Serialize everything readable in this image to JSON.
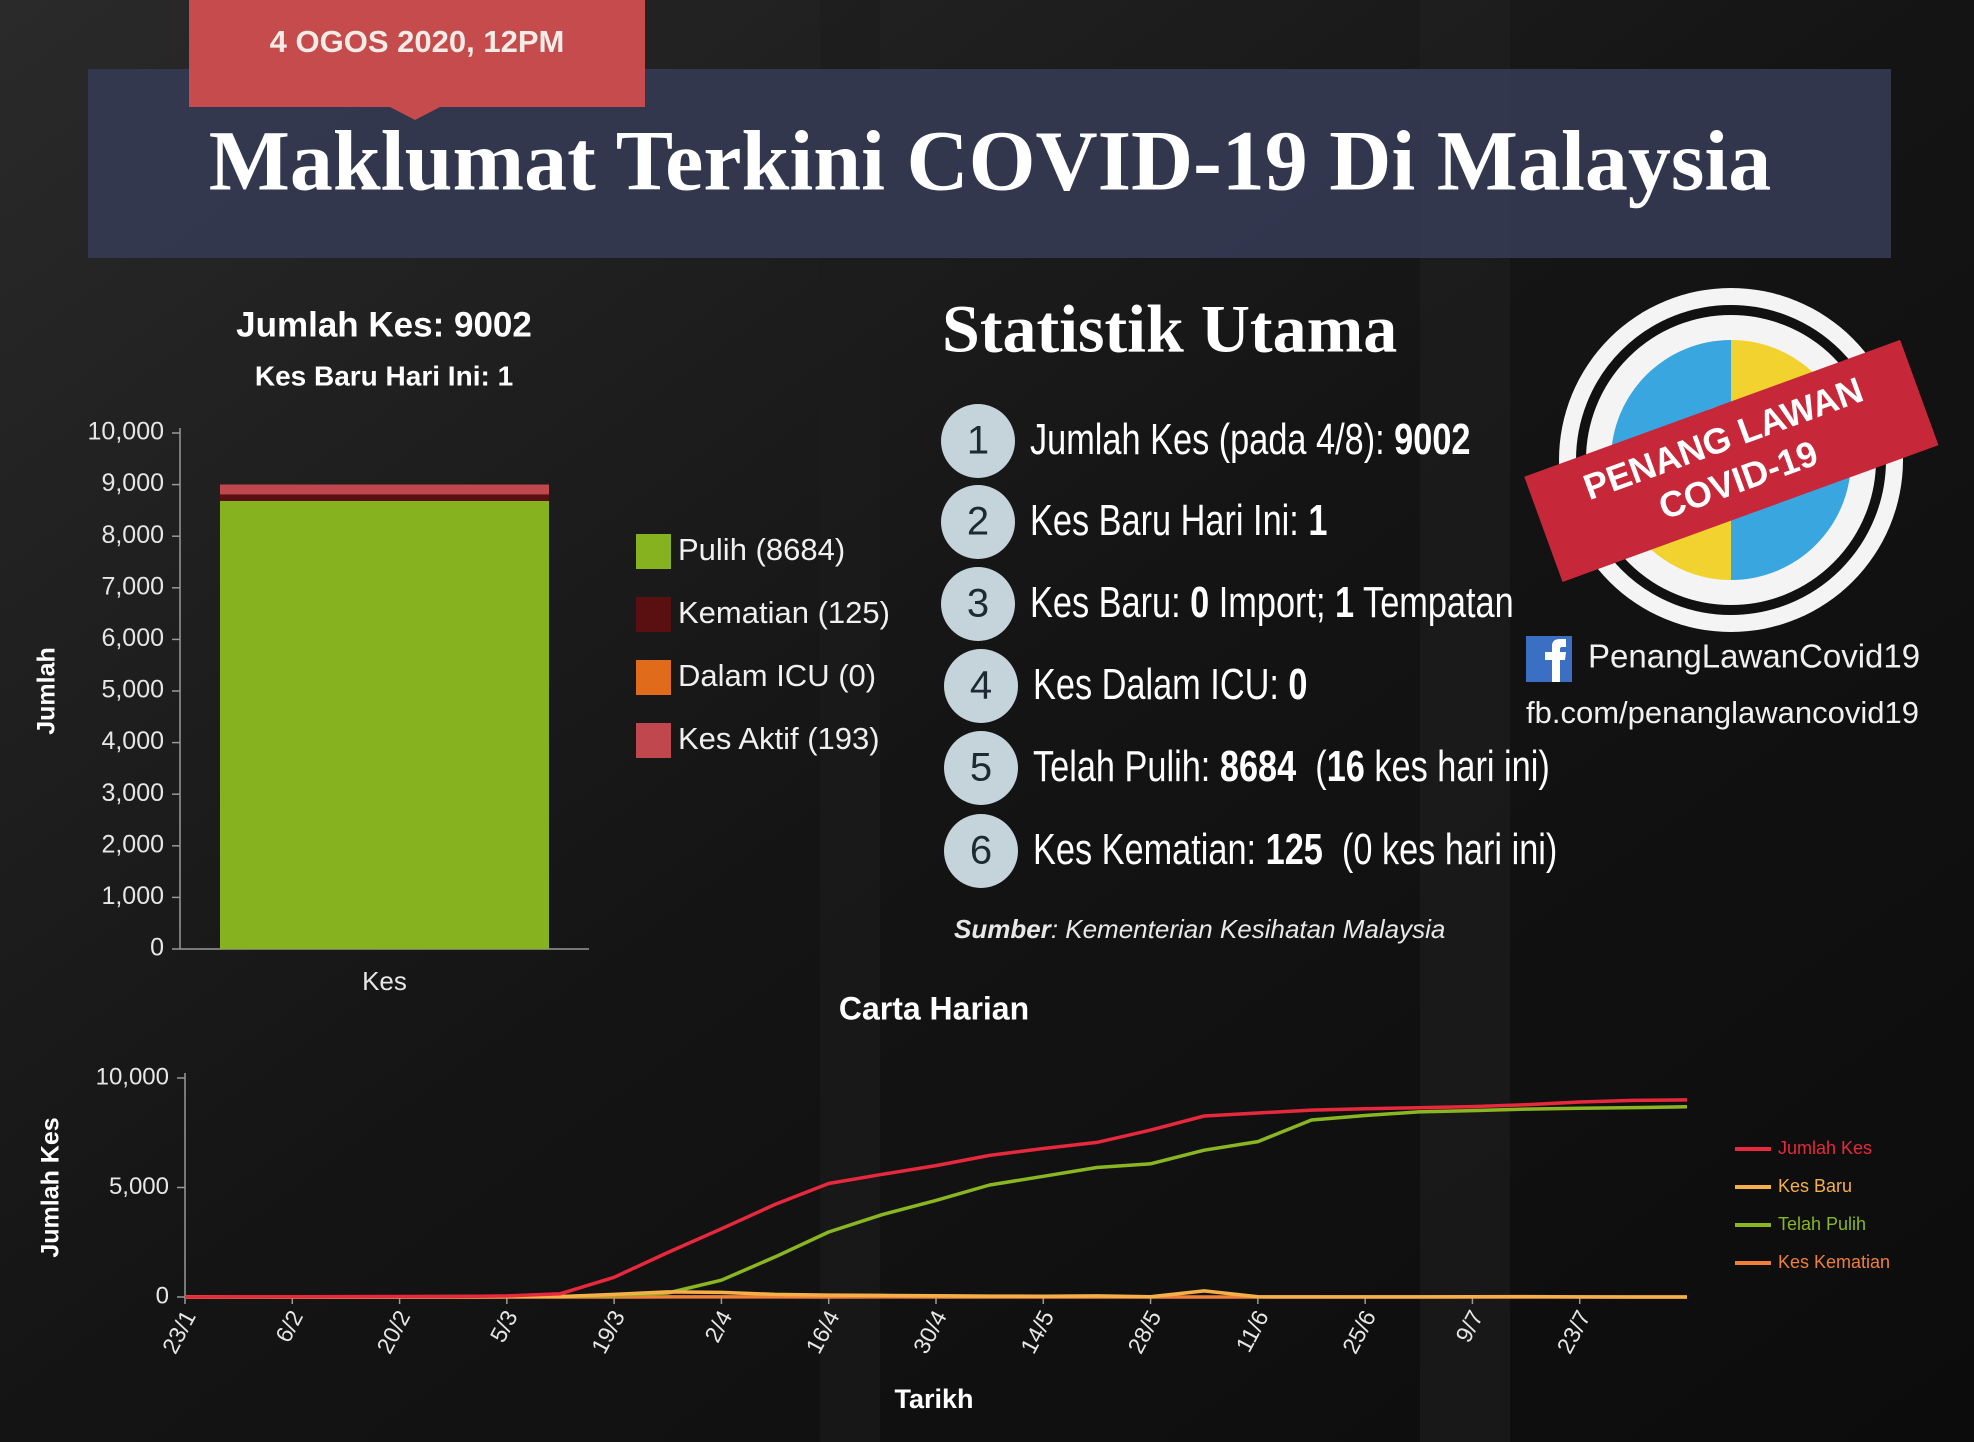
{
  "header": {
    "date": "4 OGOS 2020, 12PM",
    "title": "Maklumat Terkini COVID-19 Di Malaysia"
  },
  "stats": {
    "title": "Statistik Utama",
    "items": [
      {
        "n": "1",
        "parts": [
          "Jumlah Kes (pada 4/8): ",
          "9002"
        ]
      },
      {
        "n": "2",
        "parts": [
          "Kes Baru Hari Ini: ",
          "1"
        ]
      },
      {
        "n": "3",
        "parts": [
          "Kes Baru: ",
          "0",
          " Import; ",
          "1",
          " Tempatan"
        ]
      },
      {
        "n": "4",
        "parts": [
          "Kes Dalam ICU: ",
          "0"
        ]
      },
      {
        "n": "5",
        "parts": [
          "Telah Pulih: ",
          "8684",
          "  (",
          "16",
          " kes hari ini)"
        ]
      },
      {
        "n": "6",
        "parts": [
          "Kes Kematian: ",
          "125",
          "  (0 kes hari ini)"
        ]
      }
    ],
    "source_label": "Sumber",
    "source": ": Kementerian Kesihatan Malaysia"
  },
  "logo": {
    "line1": "PENANG LAWAN",
    "line2": "COVID-19",
    "facebook": "PenangLawanCovid19",
    "url": "fb.com/penanglawancovid19"
  },
  "chart_data": [
    {
      "type": "bar",
      "stacked": true,
      "title": "Jumlah Kes: 9002",
      "subtitle": "Kes Baru Hari Ini: 1",
      "ylabel": "Jumlah",
      "categories": [
        "Kes"
      ],
      "series": [
        {
          "name": "Pulih (8684)",
          "color": "#86b21f",
          "values": [
            8684
          ]
        },
        {
          "name": "Kematian (125)",
          "color": "#5a0f10",
          "values": [
            125
          ]
        },
        {
          "name": "Dalam ICU (0)",
          "color": "#e06b1a",
          "values": [
            0
          ]
        },
        {
          "name": "Kes Aktif (193)",
          "color": "#c0474d",
          "values": [
            193
          ]
        }
      ],
      "ylim": [
        0,
        10000
      ],
      "yticks": [
        0,
        {
          "value": 1000,
          "label": "1,000"
        },
        {
          "value": 2000,
          "label": "2,000"
        },
        {
          "value": 3000,
          "label": "3,000"
        },
        {
          "value": 4000,
          "label": "4,000"
        },
        {
          "value": 5000,
          "label": "5,000"
        },
        {
          "value": 6000,
          "label": "6,000"
        },
        {
          "value": 7000,
          "label": "7,000"
        },
        {
          "value": 8000,
          "label": "8,000"
        },
        {
          "value": 9000,
          "label": "9,000"
        },
        {
          "value": 10000,
          "label": "10,000"
        }
      ],
      "grid": false
    },
    {
      "type": "line",
      "title": "Carta Harian",
      "xlabel": "Tarikh",
      "ylabel": "Jumlah Kes",
      "categories": [
        "23/1",
        null,
        "6/2",
        null,
        "20/2",
        null,
        "5/3",
        null,
        "19/3",
        null,
        "2/4",
        null,
        "16/4",
        null,
        "30/4",
        null,
        "14/5",
        null,
        "28/5",
        null,
        "11/6",
        null,
        "25/6",
        null,
        "9/7",
        null,
        "23/7",
        null,
        null
      ],
      "series": [
        {
          "name": "Jumlah Kes",
          "color": "#e8283c",
          "values": [
            0,
            8,
            12,
            19,
            22,
            23,
            50,
            149,
            900,
            2031,
            3116,
            4228,
            5182,
            5603,
            6002,
            6467,
            6779,
            7059,
            7619,
            8266,
            8402,
            8535,
            8596,
            8640,
            8696,
            8779,
            8904,
            8976,
            9002
          ]
        },
        {
          "name": "Kes Baru",
          "color": "#f5b04a",
          "values": [
            0,
            3,
            0,
            1,
            0,
            0,
            7,
            20,
            117,
            235,
            208,
            118,
            85,
            71,
            57,
            39,
            36,
            50,
            15,
            277,
            7,
            6,
            3,
            6,
            9,
            16,
            6,
            2,
            1
          ]
        },
        {
          "name": "Telah Pulih",
          "color": "#8ab622",
          "values": [
            0,
            0,
            1,
            3,
            15,
            22,
            24,
            26,
            75,
            183,
            767,
            1830,
            2967,
            3762,
            4413,
            5113,
            5512,
            5912,
            6083,
            6702,
            7094,
            8081,
            8288,
            8453,
            8512,
            8581,
            8618,
            8649,
            8684
          ]
        },
        {
          "name": "Kes Kematian",
          "color": "#f07f3a",
          "values": [
            0,
            0,
            0,
            0,
            0,
            0,
            0,
            0,
            1,
            4,
            3,
            3,
            2,
            3,
            1,
            0,
            0,
            0,
            0,
            0,
            0,
            0,
            0,
            0,
            0,
            0,
            0,
            0,
            0
          ]
        }
      ],
      "ylim": [
        0,
        10000
      ],
      "yticks": [
        0,
        {
          "value": 5000,
          "label": "5,000"
        },
        {
          "value": 10000,
          "label": "10,000"
        }
      ],
      "grid": false,
      "legend": "right"
    }
  ]
}
